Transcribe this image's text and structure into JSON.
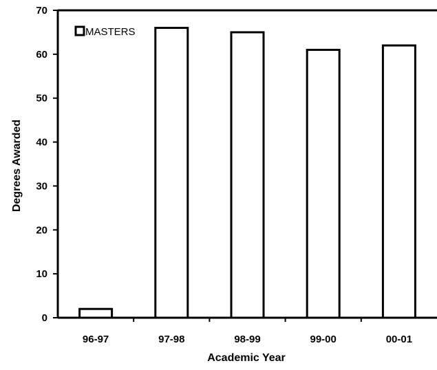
{
  "chart_data": {
    "type": "bar",
    "categories": [
      "96-97",
      "97-98",
      "98-99",
      "99-00",
      "00-01"
    ],
    "series": [
      {
        "name": "MASTERS",
        "values": [
          2,
          66,
          65,
          61,
          62
        ]
      }
    ],
    "xlabel": "Academic Year",
    "ylabel": "Degrees Awarded",
    "ylim": [
      0,
      70
    ],
    "yticks": [
      0,
      10,
      20,
      30,
      40,
      50,
      60,
      70
    ],
    "grid": false,
    "legend": "top-left",
    "colors": {
      "bar_fill": "#ffffff",
      "bar_stroke": "#000000",
      "axis": "#000000"
    }
  }
}
